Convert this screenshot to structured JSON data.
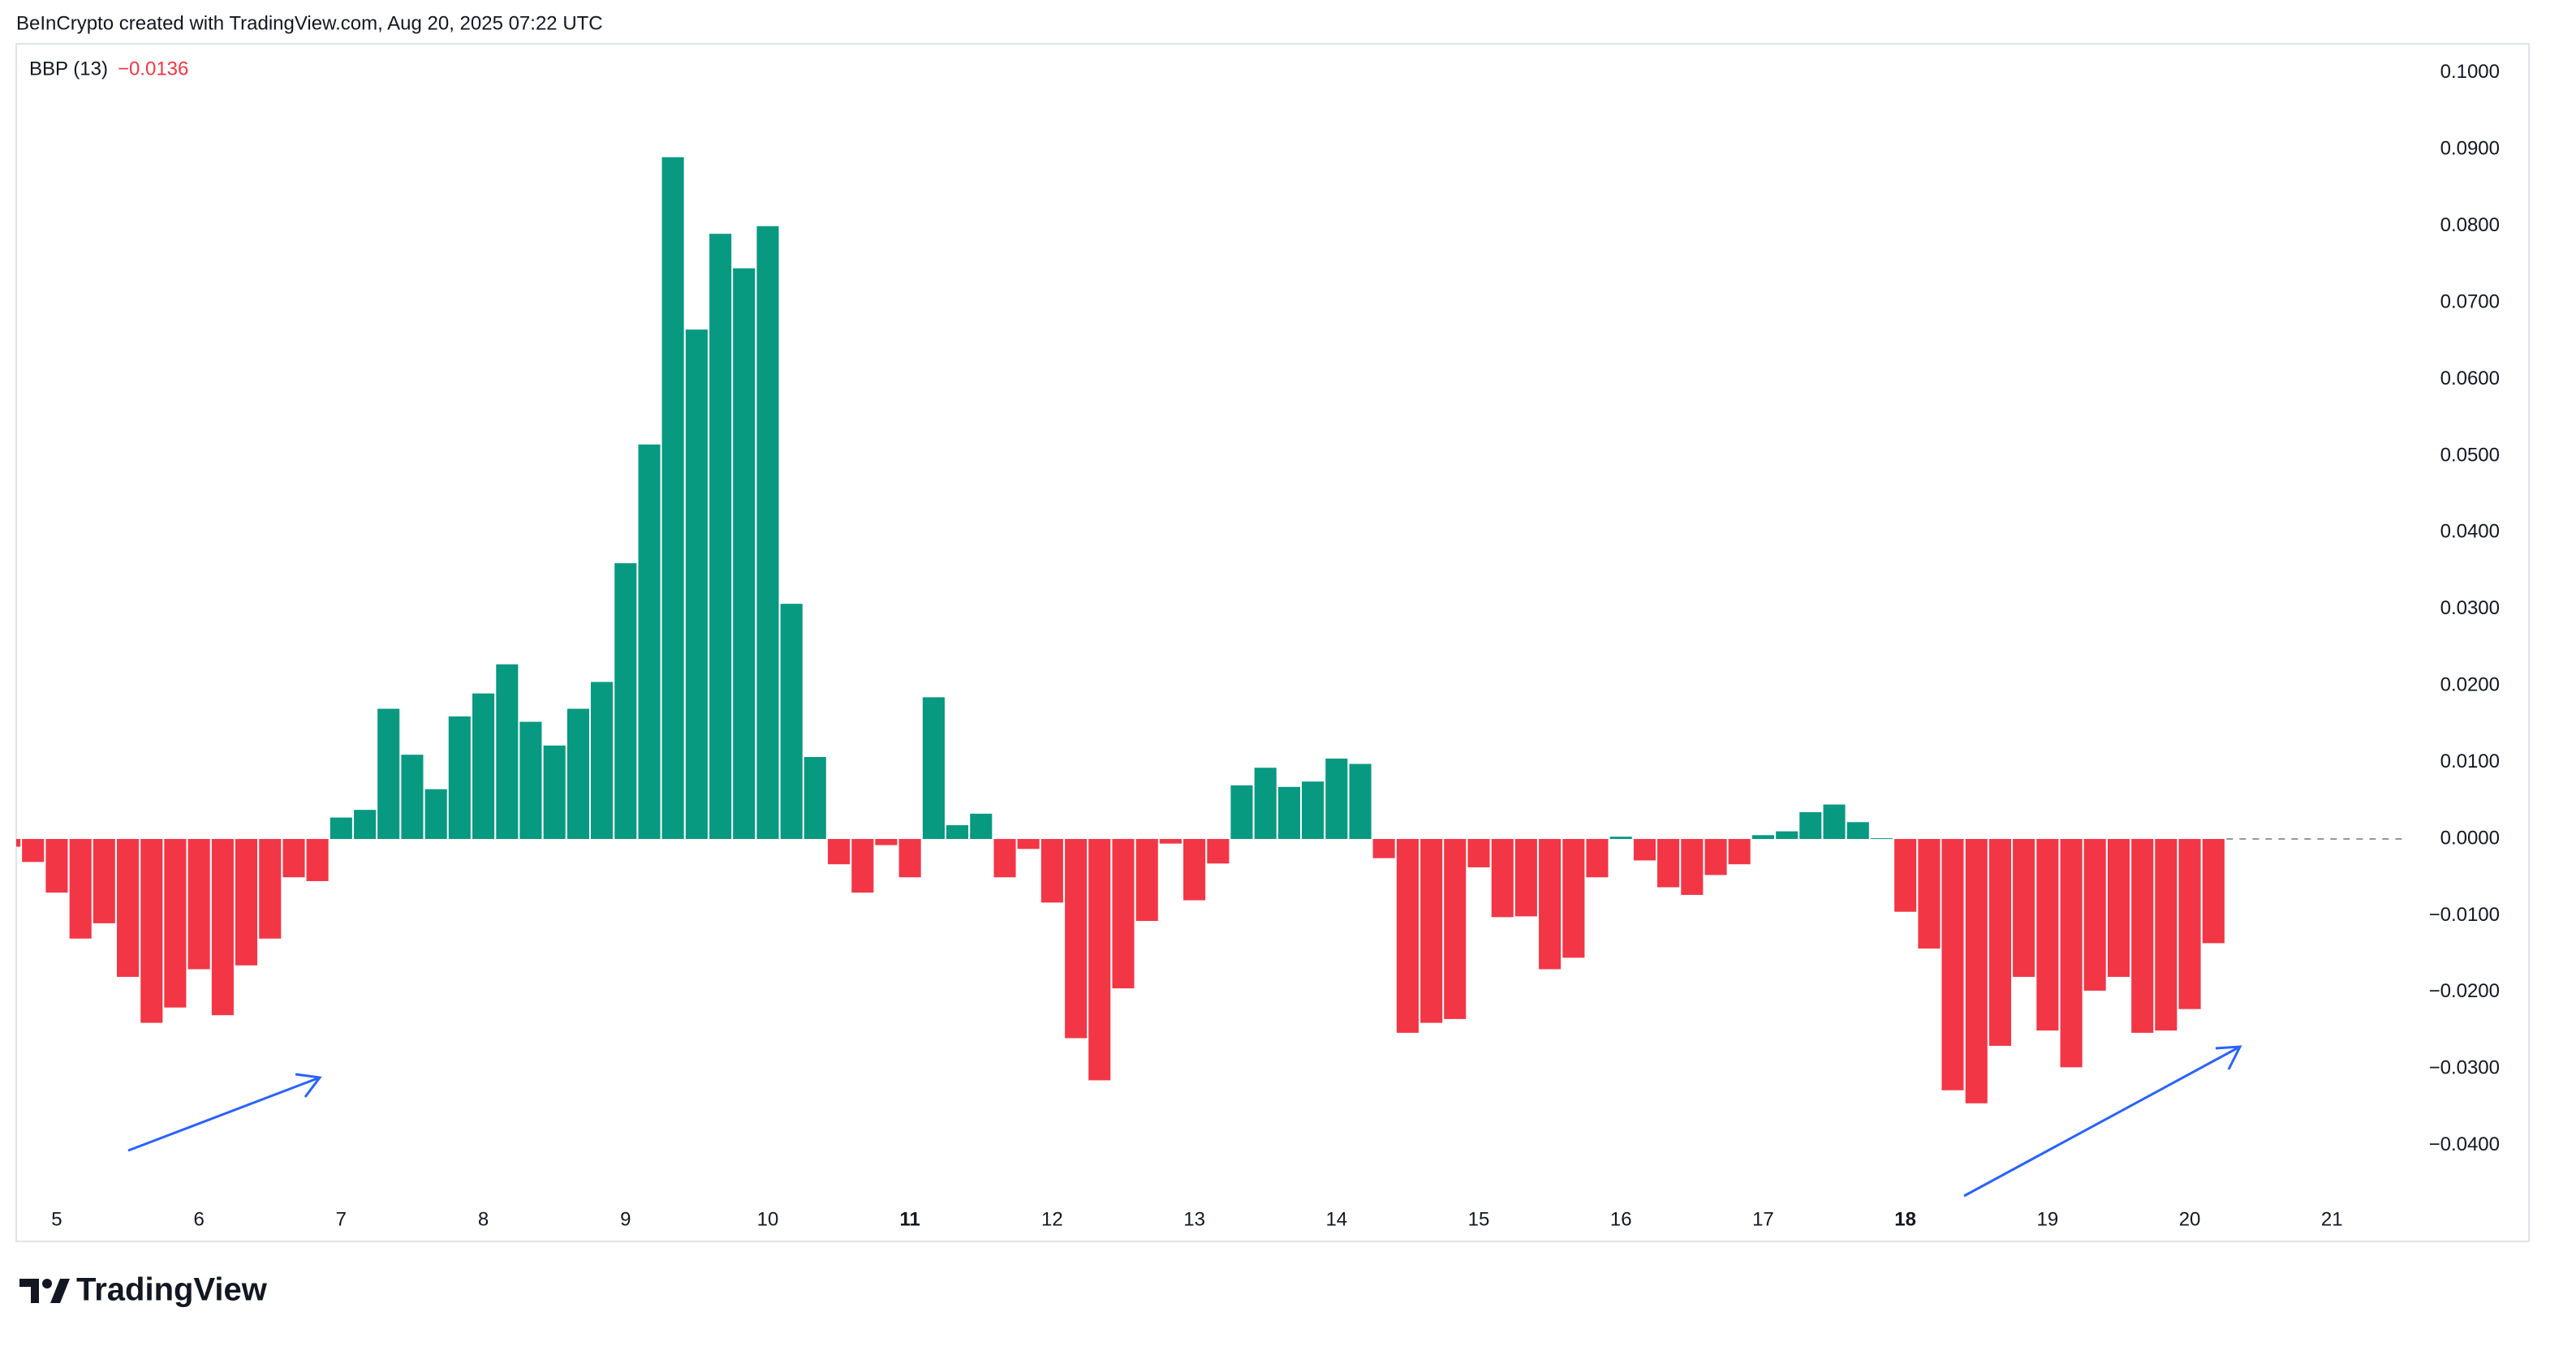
{
  "attribution": "BeInCrypto created with TradingView.com, Aug 20, 2025 07:22 UTC",
  "footer_brand": "TradingView",
  "chart_data": {
    "type": "bar",
    "indicator_name": "BBP (13)",
    "legend_value": "−0.0136",
    "up_color": "#089981",
    "down_color": "#f23645",
    "x": [
      4.667,
      4.833,
      5,
      5.167,
      5.333,
      5.5,
      5.667,
      5.833,
      6,
      6.167,
      6.333,
      6.5,
      6.667,
      6.833,
      7,
      7.167,
      7.333,
      7.5,
      7.667,
      7.833,
      8,
      8.167,
      8.333,
      8.5,
      8.667,
      8.833,
      9,
      9.167,
      9.333,
      9.5,
      9.667,
      9.833,
      10,
      10.167,
      10.333,
      10.5,
      10.667,
      10.833,
      11,
      11.167,
      11.333,
      11.5,
      11.667,
      11.833,
      12,
      12.167,
      12.333,
      12.5,
      12.667,
      12.833,
      13,
      13.167,
      13.333,
      13.5,
      13.667,
      13.833,
      14,
      14.167,
      14.333,
      14.5,
      14.667,
      14.833,
      15,
      15.167,
      15.333,
      15.5,
      15.667,
      15.833,
      16,
      16.167,
      16.333,
      16.5,
      16.667,
      16.833,
      17,
      17.167,
      17.333,
      17.5,
      17.667,
      17.833,
      18,
      18.167,
      18.333,
      18.5,
      18.667,
      18.833,
      19,
      19.167,
      19.333,
      19.5,
      19.667,
      19.833,
      20,
      20.167
    ],
    "values": [
      -0.001,
      -0.003,
      -0.007,
      -0.013,
      -0.011,
      -0.018,
      -0.024,
      -0.022,
      -0.017,
      -0.023,
      -0.0165,
      -0.013,
      -0.005,
      -0.0055,
      0.0028,
      0.0038,
      0.017,
      0.011,
      0.0065,
      0.016,
      0.019,
      0.0228,
      0.0153,
      0.0122,
      0.017,
      0.0205,
      0.036,
      0.0515,
      0.089,
      0.0665,
      0.079,
      0.0745,
      0.08,
      0.0307,
      0.0107,
      -0.0033,
      -0.007,
      -0.0008,
      -0.005,
      0.0185,
      0.0018,
      0.0033,
      -0.005,
      -0.0013,
      -0.0083,
      -0.026,
      -0.0315,
      -0.0195,
      -0.0107,
      -0.0006,
      -0.008,
      -0.0032,
      0.007,
      0.0093,
      0.0068,
      0.0075,
      0.0105,
      0.0098,
      -0.0025,
      -0.0253,
      -0.024,
      -0.0235,
      -0.0037,
      -0.0102,
      -0.0101,
      -0.017,
      -0.0155,
      -0.005,
      0.0003,
      -0.0028,
      -0.0063,
      -0.0073,
      -0.0047,
      -0.0033,
      0.0005,
      0.001,
      0.0035,
      0.0045,
      0.0022,
      0.0001,
      -0.0095,
      -0.0143,
      -0.0328,
      -0.0345,
      -0.027,
      -0.018,
      -0.025,
      -0.0298,
      -0.0198,
      -0.018,
      -0.0253,
      -0.025,
      -0.0222,
      -0.0136
    ],
    "xlim": [
      4.715,
      21.495
    ],
    "xticks": [
      5,
      6,
      7,
      8,
      9,
      10,
      11,
      12,
      13,
      14,
      15,
      16,
      17,
      18,
      19,
      20,
      21
    ],
    "bold_xticks": [
      11,
      18
    ],
    "ylim": [
      -0.0466,
      0.1038
    ],
    "yticks": [
      {
        "value": 0.1,
        "label": "0.1000"
      },
      {
        "value": 0.09,
        "label": "0.0900"
      },
      {
        "value": 0.08,
        "label": "0.0800"
      },
      {
        "value": 0.07,
        "label": "0.0700"
      },
      {
        "value": 0.06,
        "label": "0.0600"
      },
      {
        "value": 0.05,
        "label": "0.0500"
      },
      {
        "value": 0.04,
        "label": "0.0400"
      },
      {
        "value": 0.03,
        "label": "0.0300"
      },
      {
        "value": 0.02,
        "label": "0.0200"
      },
      {
        "value": 0.01,
        "label": "0.0100"
      },
      {
        "value": 0,
        "label": "0.0000"
      },
      {
        "value": -0.01,
        "label": "−0.0100"
      },
      {
        "value": -0.02,
        "label": "−0.0200"
      },
      {
        "value": -0.03,
        "label": "−0.0300"
      },
      {
        "value": -0.04,
        "label": "−0.0400"
      }
    ],
    "grid": false
  }
}
